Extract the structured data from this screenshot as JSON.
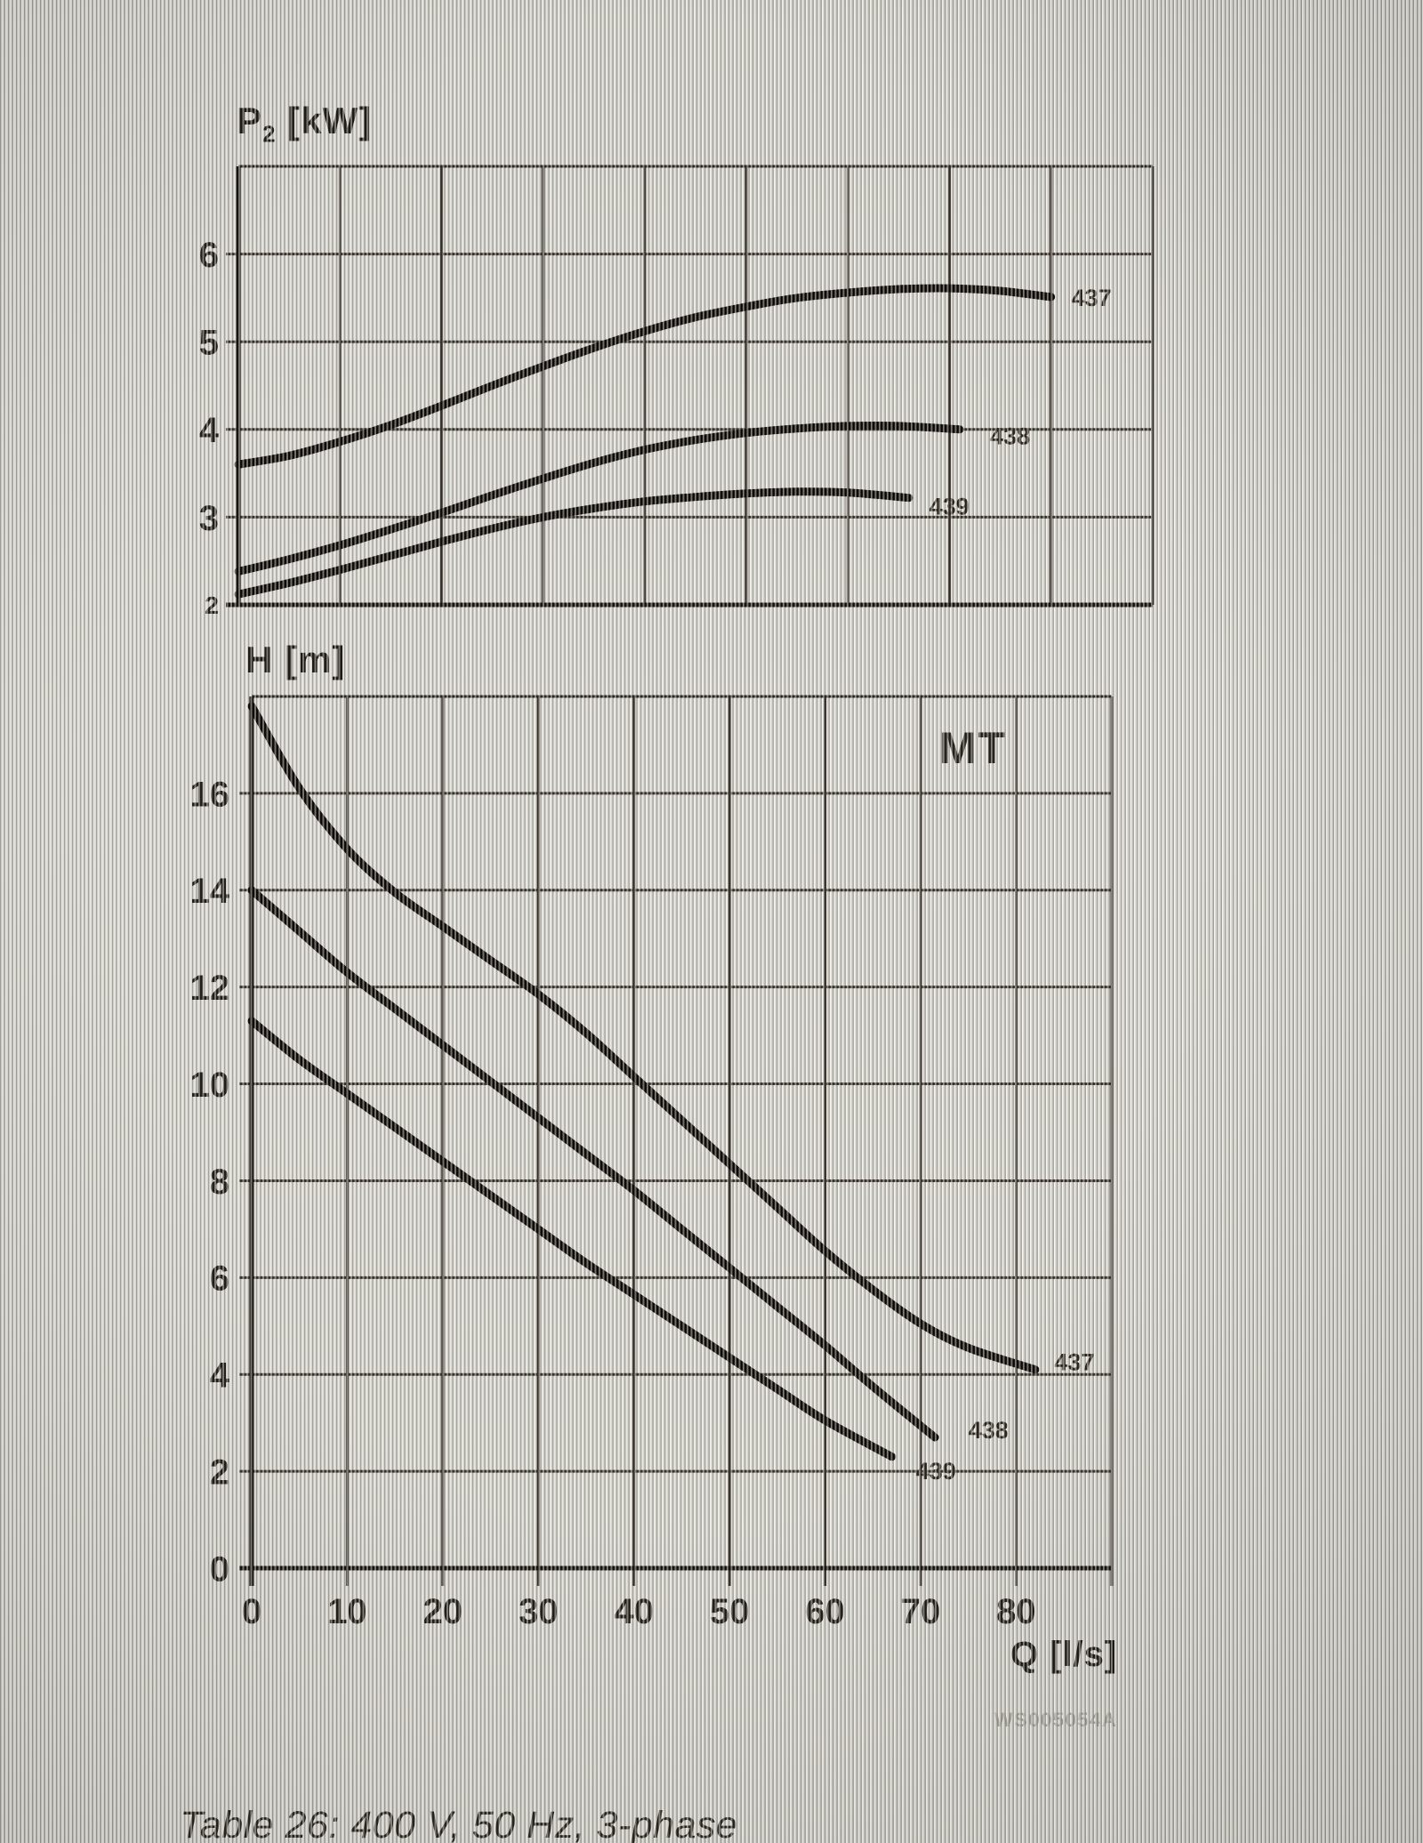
{
  "page": {
    "caption": "Table 26: 400 V, 50 Hz, 3-phase",
    "watermark": "WS005054A"
  },
  "colors": {
    "ink": "#0d0a07",
    "grid": "#37312a",
    "frame": "#2a251f",
    "axis": "#16120d",
    "tick_text": "#211d18",
    "paper": "#dcdbd5",
    "watermark_gray": "#8b8982"
  },
  "chart_data": [
    {
      "id": "power-chart",
      "type": "line",
      "y_label_main": "P",
      "y_label_sub": "2",
      "y_label_unit": " [kW]",
      "xlabel": "",
      "ylabel": "P2 [kW]",
      "xlim": [
        0,
        90
      ],
      "ylim": [
        2,
        7
      ],
      "x_gridstep": 10,
      "y_gridstep": 1,
      "grid": true,
      "legend_position": "end-of-line-labels",
      "y_ticks": [
        {
          "value": 6,
          "label": "6"
        },
        {
          "value": 5,
          "label": "5"
        },
        {
          "value": 4,
          "label": "4"
        },
        {
          "value": 3,
          "label": "3"
        },
        {
          "value": 2,
          "label": "2",
          "size": "small"
        }
      ],
      "x_ticks": [],
      "series": [
        {
          "name": "437",
          "label": "437",
          "label_at": [
            82.0,
            5.5
          ],
          "points": [
            [
              0,
              3.6
            ],
            [
              5,
              3.7
            ],
            [
              10,
              3.86
            ],
            [
              15,
              4.05
            ],
            [
              20,
              4.27
            ],
            [
              25,
              4.5
            ],
            [
              30,
              4.72
            ],
            [
              35,
              4.93
            ],
            [
              40,
              5.12
            ],
            [
              45,
              5.28
            ],
            [
              50,
              5.4
            ],
            [
              55,
              5.5
            ],
            [
              60,
              5.56
            ],
            [
              65,
              5.6
            ],
            [
              70,
              5.61
            ],
            [
              75,
              5.58
            ],
            [
              80,
              5.51
            ]
          ]
        },
        {
          "name": "438",
          "label": "438",
          "label_at": [
            74.0,
            3.92
          ],
          "points": [
            [
              0,
              2.38
            ],
            [
              5,
              2.52
            ],
            [
              10,
              2.68
            ],
            [
              15,
              2.86
            ],
            [
              20,
              3.05
            ],
            [
              25,
              3.25
            ],
            [
              30,
              3.44
            ],
            [
              35,
              3.62
            ],
            [
              40,
              3.77
            ],
            [
              45,
              3.88
            ],
            [
              50,
              3.96
            ],
            [
              55,
              4.01
            ],
            [
              60,
              4.04
            ],
            [
              65,
              4.04
            ],
            [
              71,
              4.0
            ]
          ]
        },
        {
          "name": "439",
          "label": "439",
          "label_at": [
            68.0,
            3.12
          ],
          "points": [
            [
              0,
              2.12
            ],
            [
              5,
              2.25
            ],
            [
              10,
              2.4
            ],
            [
              15,
              2.56
            ],
            [
              20,
              2.72
            ],
            [
              25,
              2.87
            ],
            [
              30,
              3.0
            ],
            [
              35,
              3.1
            ],
            [
              40,
              3.18
            ],
            [
              45,
              3.23
            ],
            [
              50,
              3.27
            ],
            [
              55,
              3.29
            ],
            [
              60,
              3.28
            ],
            [
              66,
              3.22
            ]
          ]
        }
      ]
    },
    {
      "id": "head-chart",
      "type": "line",
      "corner_label": "MT",
      "y_label": "H [m]",
      "x_label": "Q [l/s]",
      "xlabel": "Q [l/s]",
      "ylabel": "H [m]",
      "xlim": [
        0,
        90
      ],
      "ylim": [
        0,
        18
      ],
      "x_gridstep": 10,
      "y_gridstep": 2,
      "grid": true,
      "legend_position": "end-of-line-labels",
      "y_ticks": [
        {
          "value": 16,
          "label": "16"
        },
        {
          "value": 14,
          "label": "14"
        },
        {
          "value": 12,
          "label": "12"
        },
        {
          "value": 10,
          "label": "10"
        },
        {
          "value": 8,
          "label": "8"
        },
        {
          "value": 6,
          "label": "6"
        },
        {
          "value": 4,
          "label": "4"
        },
        {
          "value": 2,
          "label": "2"
        },
        {
          "value": 0,
          "label": "0"
        }
      ],
      "x_ticks": [
        {
          "value": 0,
          "label": "0"
        },
        {
          "value": 10,
          "label": "10"
        },
        {
          "value": 20,
          "label": "20"
        },
        {
          "value": 30,
          "label": "30"
        },
        {
          "value": 40,
          "label": "40"
        },
        {
          "value": 50,
          "label": "50"
        },
        {
          "value": 60,
          "label": "60"
        },
        {
          "value": 70,
          "label": "70"
        },
        {
          "value": 80,
          "label": "80"
        }
      ],
      "series": [
        {
          "name": "437",
          "label": "437",
          "label_at": [
            84.0,
            4.25
          ],
          "points": [
            [
              0,
              17.8
            ],
            [
              5,
              16.1
            ],
            [
              10,
              14.85
            ],
            [
              15,
              13.95
            ],
            [
              20,
              13.25
            ],
            [
              25,
              12.55
            ],
            [
              30,
              11.85
            ],
            [
              35,
              11.05
            ],
            [
              40,
              10.15
            ],
            [
              45,
              9.25
            ],
            [
              50,
              8.35
            ],
            [
              55,
              7.45
            ],
            [
              60,
              6.55
            ],
            [
              65,
              5.75
            ],
            [
              70,
              5.05
            ],
            [
              75,
              4.55
            ],
            [
              82,
              4.1
            ]
          ]
        },
        {
          "name": "438",
          "label": "438",
          "label_at": [
            75.0,
            2.85
          ],
          "points": [
            [
              0,
              14.0
            ],
            [
              5,
              13.15
            ],
            [
              10,
              12.3
            ],
            [
              15,
              11.55
            ],
            [
              20,
              10.8
            ],
            [
              25,
              10.05
            ],
            [
              30,
              9.3
            ],
            [
              35,
              8.55
            ],
            [
              40,
              7.8
            ],
            [
              45,
              7.0
            ],
            [
              50,
              6.2
            ],
            [
              55,
              5.4
            ],
            [
              60,
              4.6
            ],
            [
              65,
              3.75
            ],
            [
              71.5,
              2.7
            ]
          ]
        },
        {
          "name": "439",
          "label": "439",
          "label_at": [
            69.5,
            2.0
          ],
          "points": [
            [
              0,
              11.3
            ],
            [
              5,
              10.5
            ],
            [
              10,
              9.8
            ],
            [
              15,
              9.1
            ],
            [
              20,
              8.4
            ],
            [
              25,
              7.7
            ],
            [
              30,
              7.0
            ],
            [
              35,
              6.3
            ],
            [
              40,
              5.65
            ],
            [
              45,
              5.0
            ],
            [
              50,
              4.35
            ],
            [
              55,
              3.7
            ],
            [
              60,
              3.05
            ],
            [
              67,
              2.3
            ]
          ]
        }
      ]
    }
  ]
}
